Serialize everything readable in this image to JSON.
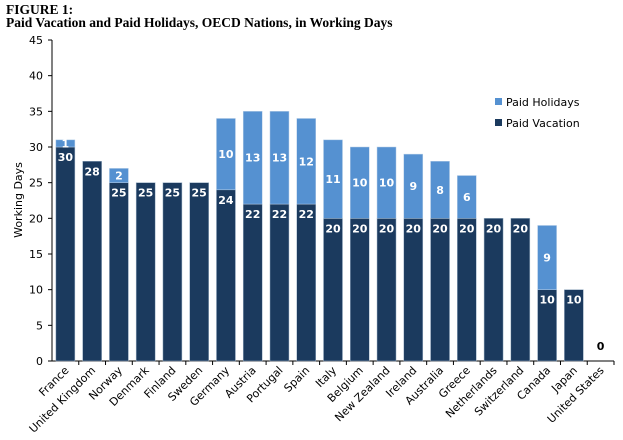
{
  "chart_data": {
    "type": "bar",
    "stacked": true,
    "title": "FIGURE 1:",
    "subtitle": "Paid Vacation and Paid Holidays, OECD Nations, in Working Days",
    "xlabel": "",
    "ylabel": "Working Days",
    "ylim": [
      0,
      45
    ],
    "yticks": [
      "0",
      "5",
      "10",
      "15",
      "20",
      "25",
      "30",
      "35",
      "40",
      "45"
    ],
    "categories": [
      "France",
      "United Kingdom",
      "Norway",
      "Denmark",
      "Finland",
      "Sweden",
      "Germany",
      "Austria",
      "Portugal",
      "Spain",
      "Italy",
      "Belgium",
      "New Zealand",
      "Ireland",
      "Australia",
      "Greece",
      "Netherlands",
      "Switzerland",
      "Canada",
      "Japan",
      "United States"
    ],
    "series": [
      {
        "name": "Paid Vacation",
        "color": "#1b3a5e",
        "values": [
          30,
          28,
          25,
          25,
          25,
          25,
          24,
          22,
          22,
          22,
          20,
          20,
          20,
          20,
          20,
          20,
          20,
          20,
          10,
          10,
          0
        ]
      },
      {
        "name": "Paid Holidays",
        "color": "#5591d1",
        "values": [
          1,
          0,
          2,
          0,
          0,
          0,
          10,
          13,
          13,
          12,
          11,
          10,
          10,
          9,
          8,
          6,
          0,
          0,
          9,
          0,
          0
        ]
      }
    ],
    "legend_placement": "top-right",
    "grid": false
  }
}
